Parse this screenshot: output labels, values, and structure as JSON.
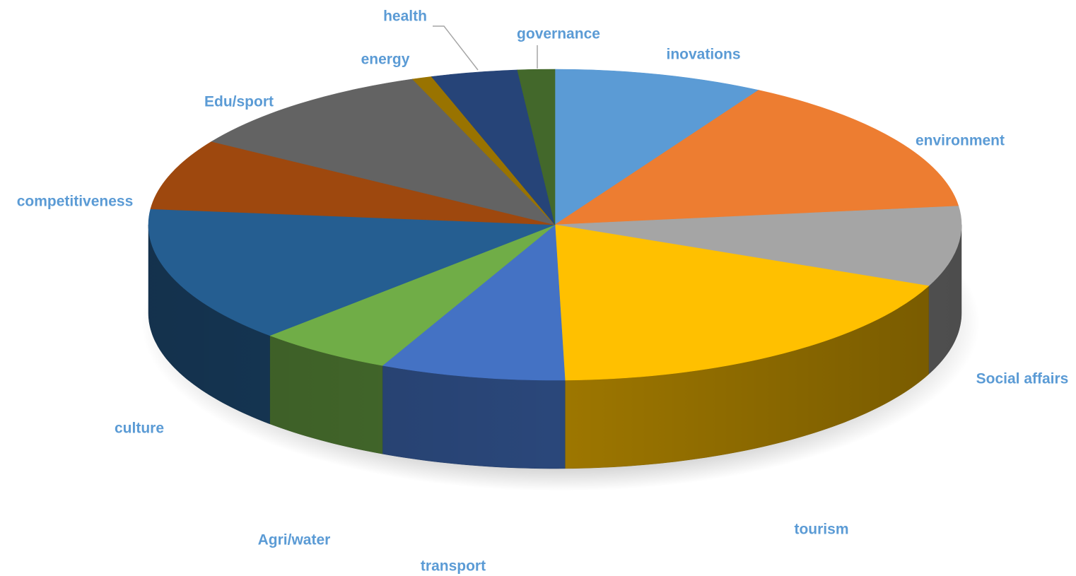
{
  "chart_data": {
    "type": "pie",
    "style": "3d",
    "title": "",
    "label_color": "#5b9bd5",
    "legend": "none",
    "slices": [
      {
        "label": "inovations",
        "value": 8.5,
        "color": "#5b9bd5"
      },
      {
        "label": "environment",
        "value": 15.0,
        "color": "#ed7d31"
      },
      {
        "label": "Social affairs",
        "value": 8.5,
        "color": "#a5a5a5"
      },
      {
        "label": "tourism",
        "value": 18.5,
        "color": "#ffc000"
      },
      {
        "label": "transport",
        "value": 7.5,
        "color": "#4472c4"
      },
      {
        "label": "Agri/water",
        "value": 5.5,
        "color": "#70ad47"
      },
      {
        "label": "culture",
        "value": 14.5,
        "color": "#255e91"
      },
      {
        "label": "competitiveness",
        "value": 7.5,
        "color": "#9e480e"
      },
      {
        "label": "Edu/sport",
        "value": 10.5,
        "color": "#636363"
      },
      {
        "label": "energy",
        "value": 0.8,
        "color": "#997300"
      },
      {
        "label": "health",
        "value": 3.5,
        "color": "#264478"
      },
      {
        "label": "governance",
        "value": 1.5,
        "color": "#43682b"
      }
    ]
  }
}
